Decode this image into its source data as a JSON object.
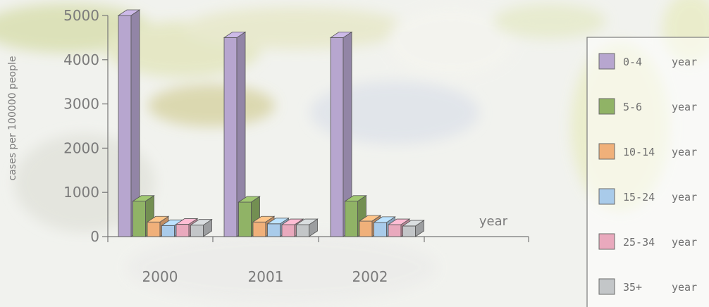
{
  "chart_data": {
    "type": "bar",
    "ylabel": "cases per 100000 people",
    "xlabel": "year",
    "categories": [
      "2000",
      "2001",
      "2002"
    ],
    "yticks": [
      "0",
      "1000",
      "2000",
      "3000",
      "4000",
      "5000"
    ],
    "ylim": [
      0,
      5000
    ],
    "legend_position": "right",
    "grid": false,
    "series": [
      {
        "name": "0-4",
        "unit": "year",
        "color": "#b7a6cf",
        "values": [
          5000,
          4500,
          4500
        ]
      },
      {
        "name": "5-6",
        "unit": "year",
        "color": "#90b366",
        "values": [
          800,
          780,
          800
        ]
      },
      {
        "name": "10-14",
        "unit": "year",
        "color": "#f0b07a",
        "values": [
          330,
          330,
          350
        ]
      },
      {
        "name": "15-24",
        "unit": "year",
        "color": "#a9cbea",
        "values": [
          250,
          290,
          320
        ]
      },
      {
        "name": "25-34",
        "unit": "year",
        "color": "#e9a9bd",
        "values": [
          280,
          270,
          270
        ]
      },
      {
        "name": "35+",
        "unit": "year",
        "color": "#c3c6c8",
        "values": [
          260,
          270,
          240
        ]
      }
    ]
  }
}
